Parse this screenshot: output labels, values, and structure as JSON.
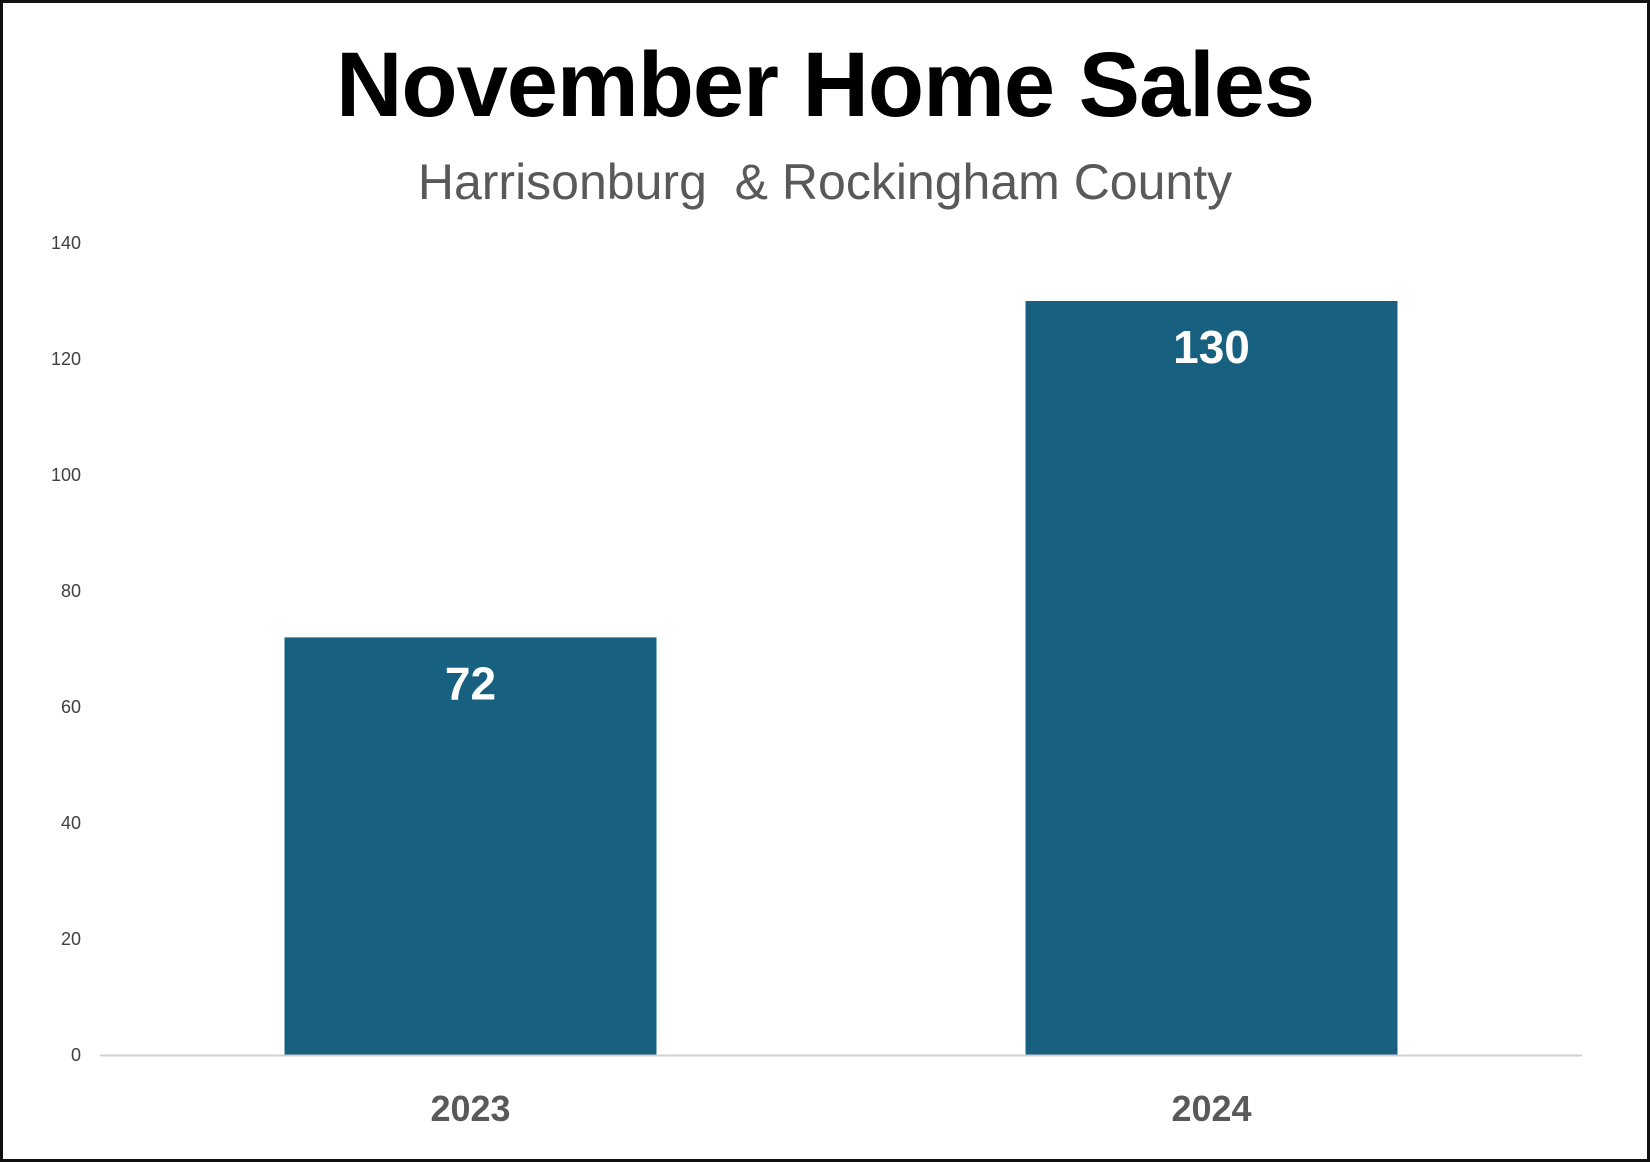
{
  "chart_data": {
    "type": "bar",
    "title": "November Home Sales",
    "subtitle": "Harrisonburg  & Rockingham County",
    "categories": [
      "2023",
      "2024"
    ],
    "values": [
      72,
      130
    ],
    "data_labels": [
      "72",
      "130"
    ],
    "ylim": [
      0,
      140
    ],
    "yticks": [
      0,
      20,
      40,
      60,
      80,
      100,
      120,
      140
    ],
    "grid": false,
    "legend": "none",
    "bar_color": "#17607F"
  }
}
